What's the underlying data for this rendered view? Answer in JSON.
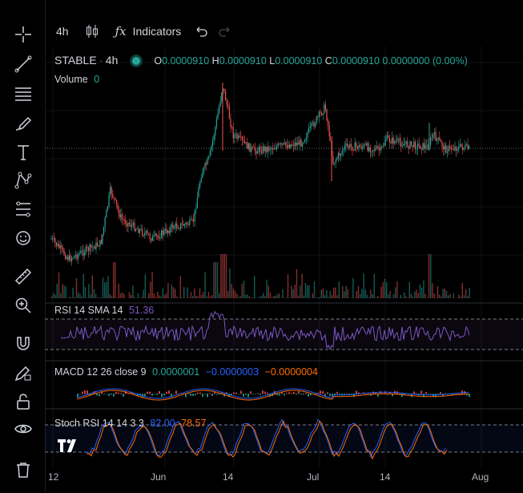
{
  "toolbar": {
    "interval": "4h",
    "indicators_label": "Indicators"
  },
  "sidebar": {
    "tools": [
      "crosshair-icon",
      "trend-line-icon",
      "fib-retracement-icon",
      "brush-icon",
      "text-icon",
      "pattern-icon",
      "forecast-icon",
      "emoji-icon",
      "ruler-icon",
      "zoom-in-icon",
      "magnet-icon",
      "lock-drawing-icon",
      "lock-icon",
      "eye-icon",
      "trash-icon"
    ]
  },
  "legend": {
    "symbol": "STABLE",
    "sep": "·",
    "interval": "4h",
    "o_label": "O",
    "o_value": "0.0000910",
    "h_label": "H",
    "h_value": "0.0000910",
    "l_label": "L",
    "l_value": "0.0000910",
    "c_label": "C",
    "c_value": "0.0000910",
    "change": "0.0000000 (0.00%)",
    "volume_label": "Volume",
    "volume_value": "0"
  },
  "rsi": {
    "label": "RSI 14 SMA 14",
    "value": "51.36",
    "color": "#7e57c2"
  },
  "macd": {
    "label": "MACD 12 26 close 9",
    "v1": "0.0000001",
    "v2": "−0.0000003",
    "v3": "−0.0000004",
    "c1": "#26a69a",
    "c2": "#2962ff",
    "c3": "#ff6d00"
  },
  "stoch": {
    "label": "Stoch RSI 14 14 3 3",
    "k": "82.00",
    "d": "78.57",
    "ck": "#2962ff",
    "cd": "#ff6d00"
  },
  "xaxis": [
    "12",
    "Jun",
    "14",
    "Jul",
    "14",
    "Aug"
  ],
  "colors": {
    "up": "#26a69a",
    "down": "#ef5350",
    "bg": "#000000"
  }
}
